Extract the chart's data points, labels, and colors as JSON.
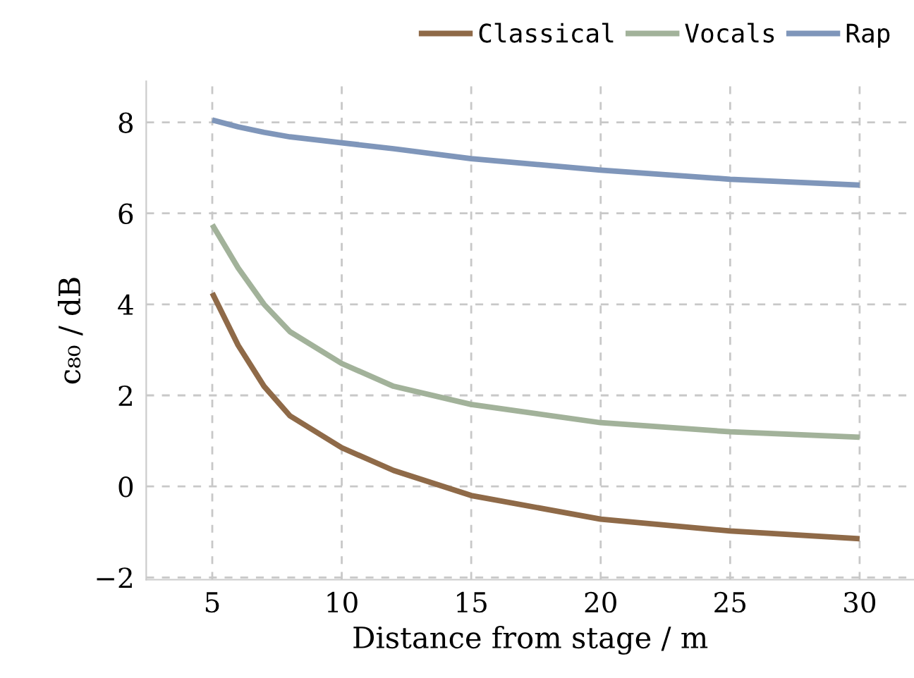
{
  "chart_data": {
    "type": "line",
    "xlabel": "Distance from stage / m",
    "ylabel": "c₈₀ / dB",
    "x": [
      5,
      6,
      7,
      8,
      10,
      12,
      15,
      20,
      25,
      30
    ],
    "series": [
      {
        "name": "Classical",
        "color": "#8f6a48",
        "values": [
          4.25,
          3.1,
          2.2,
          1.55,
          0.85,
          0.35,
          -0.2,
          -0.72,
          -0.98,
          -1.15
        ]
      },
      {
        "name": "Vocals",
        "color": "#a2b29a",
        "values": [
          5.75,
          4.8,
          4.0,
          3.4,
          2.7,
          2.2,
          1.8,
          1.4,
          1.2,
          1.08
        ]
      },
      {
        "name": "Rap",
        "color": "#7f96ba",
        "values": [
          8.05,
          7.9,
          7.78,
          7.68,
          7.55,
          7.42,
          7.2,
          6.95,
          6.75,
          6.62
        ]
      }
    ],
    "xlim": [
      2.45,
      32.1
    ],
    "ylim": [
      -2.05,
      8.9
    ],
    "xticks": [
      5,
      10,
      15,
      20,
      25,
      30
    ],
    "yticks": [
      {
        "value": -2,
        "label": "−2"
      },
      0,
      2,
      4,
      6,
      8
    ],
    "grid": true,
    "legend": "top right",
    "marker": "none",
    "line_style": "solid"
  }
}
